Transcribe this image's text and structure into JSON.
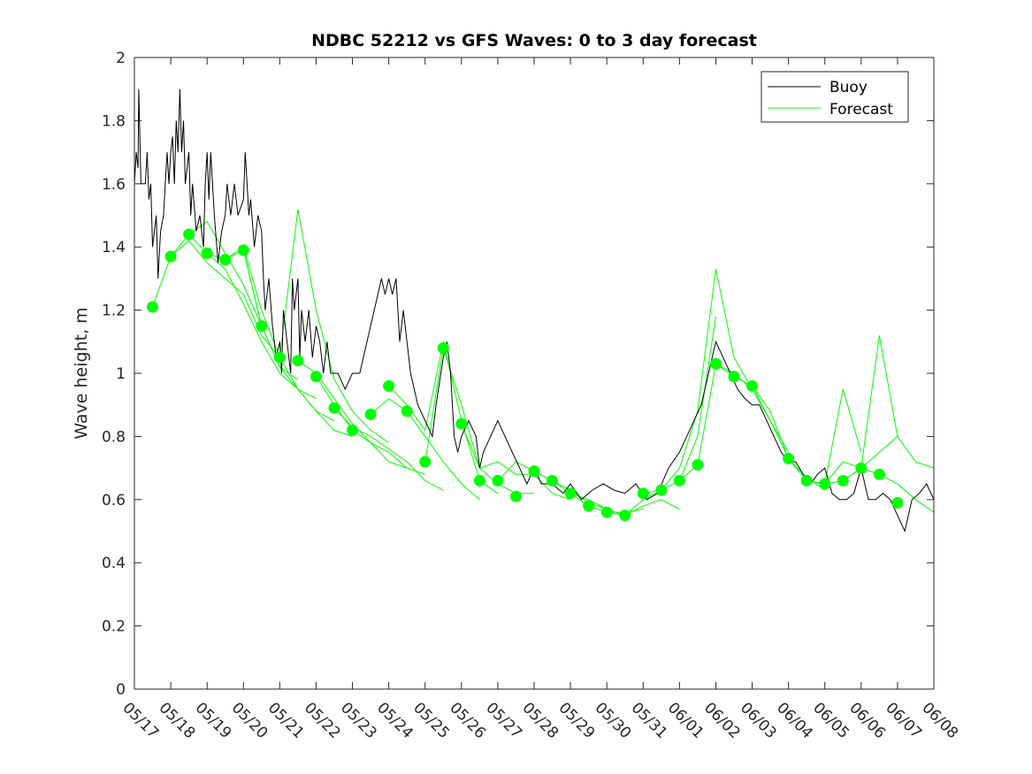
{
  "chart_data": {
    "type": "line",
    "title": "NDBC 52212 vs GFS Waves: 0 to 3 day forecast",
    "xlabel": "",
    "ylabel": "Wave height, m",
    "xlim": [
      "05/17",
      "06/08"
    ],
    "ylim": [
      0,
      2
    ],
    "yticks": [
      0,
      0.2,
      0.4,
      0.6,
      0.8,
      1,
      1.2,
      1.4,
      1.6,
      1.8,
      2
    ],
    "ytick_labels": [
      "0",
      "0.2",
      "0.4",
      "0.6",
      "0.8",
      "1",
      "1.2",
      "1.4",
      "1.6",
      "1.8",
      "2"
    ],
    "xtick_labels": [
      "05/17",
      "05/18",
      "05/19",
      "05/20",
      "05/21",
      "05/22",
      "05/23",
      "05/24",
      "05/25",
      "05/26",
      "05/27",
      "05/28",
      "05/29",
      "05/30",
      "05/31",
      "06/01",
      "06/02",
      "06/03",
      "06/04",
      "06/05",
      "06/06",
      "06/07",
      "06/08"
    ],
    "grid": false,
    "legend": {
      "position": "top-right",
      "entries": [
        "Buoy",
        "Forecast"
      ]
    },
    "colors": {
      "buoy": "#000000",
      "forecast": "#00ff00",
      "axis": "#262626"
    },
    "x_units": "days since 05/17 00:00",
    "buoy": [
      [
        0.0,
        1.6
      ],
      [
        0.05,
        1.7
      ],
      [
        0.1,
        1.65
      ],
      [
        0.12,
        1.9
      ],
      [
        0.18,
        1.6
      ],
      [
        0.3,
        1.6
      ],
      [
        0.35,
        1.7
      ],
      [
        0.4,
        1.55
      ],
      [
        0.45,
        1.6
      ],
      [
        0.5,
        1.4
      ],
      [
        0.6,
        1.5
      ],
      [
        0.65,
        1.3
      ],
      [
        0.72,
        1.45
      ],
      [
        0.8,
        1.5
      ],
      [
        0.85,
        1.6
      ],
      [
        0.9,
        1.7
      ],
      [
        0.95,
        1.6
      ],
      [
        1.0,
        1.7
      ],
      [
        1.05,
        1.75
      ],
      [
        1.1,
        1.6
      ],
      [
        1.15,
        1.8
      ],
      [
        1.2,
        1.7
      ],
      [
        1.25,
        1.9
      ],
      [
        1.3,
        1.7
      ],
      [
        1.35,
        1.8
      ],
      [
        1.4,
        1.6
      ],
      [
        1.5,
        1.7
      ],
      [
        1.55,
        1.5
      ],
      [
        1.6,
        1.6
      ],
      [
        1.7,
        1.45
      ],
      [
        1.8,
        1.5
      ],
      [
        1.9,
        1.4
      ],
      [
        1.95,
        1.6
      ],
      [
        2.0,
        1.7
      ],
      [
        2.05,
        1.55
      ],
      [
        2.1,
        1.7
      ],
      [
        2.15,
        1.6
      ],
      [
        2.2,
        1.5
      ],
      [
        2.3,
        1.35
      ],
      [
        2.4,
        1.45
      ],
      [
        2.5,
        1.5
      ],
      [
        2.55,
        1.6
      ],
      [
        2.65,
        1.5
      ],
      [
        2.75,
        1.6
      ],
      [
        2.85,
        1.5
      ],
      [
        3.0,
        1.55
      ],
      [
        3.05,
        1.7
      ],
      [
        3.1,
        1.6
      ],
      [
        3.15,
        1.5
      ],
      [
        3.2,
        1.55
      ],
      [
        3.3,
        1.4
      ],
      [
        3.4,
        1.5
      ],
      [
        3.5,
        1.45
      ],
      [
        3.55,
        1.3
      ],
      [
        3.6,
        1.2
      ],
      [
        3.7,
        1.3
      ],
      [
        3.8,
        1.15
      ],
      [
        3.9,
        1.05
      ],
      [
        4.0,
        1.1
      ],
      [
        4.05,
        1.0
      ],
      [
        4.1,
        1.2
      ],
      [
        4.2,
        1.1
      ],
      [
        4.3,
        1.0
      ],
      [
        4.35,
        1.3
      ],
      [
        4.4,
        1.2
      ],
      [
        4.5,
        1.3
      ],
      [
        4.55,
        1.05
      ],
      [
        4.6,
        1.2
      ],
      [
        4.7,
        1.1
      ],
      [
        4.8,
        1.2
      ],
      [
        4.9,
        1.05
      ],
      [
        5.0,
        1.15
      ],
      [
        5.1,
        1.1
      ],
      [
        5.2,
        1.0
      ],
      [
        5.3,
        1.1
      ],
      [
        5.4,
        1.0
      ],
      [
        5.5,
        1.0
      ],
      [
        5.6,
        1.0
      ],
      [
        5.8,
        0.95
      ],
      [
        6.0,
        1.0
      ],
      [
        6.2,
        1.0
      ],
      [
        6.4,
        1.1
      ],
      [
        6.6,
        1.2
      ],
      [
        6.8,
        1.3
      ],
      [
        6.9,
        1.25
      ],
      [
        7.0,
        1.3
      ],
      [
        7.1,
        1.25
      ],
      [
        7.2,
        1.3
      ],
      [
        7.3,
        1.1
      ],
      [
        7.4,
        1.2
      ],
      [
        7.5,
        1.1
      ],
      [
        7.6,
        1.0
      ],
      [
        7.8,
        0.9
      ],
      [
        8.0,
        0.85
      ],
      [
        8.2,
        0.8
      ],
      [
        8.3,
        0.9
      ],
      [
        8.5,
        1.05
      ],
      [
        8.6,
        1.1
      ],
      [
        8.7,
        1.0
      ],
      [
        8.8,
        0.8
      ],
      [
        8.9,
        0.75
      ],
      [
        9.0,
        0.8
      ],
      [
        9.2,
        0.85
      ],
      [
        9.4,
        0.8
      ],
      [
        9.5,
        0.7
      ],
      [
        9.6,
        0.75
      ],
      [
        9.8,
        0.8
      ],
      [
        10.0,
        0.85
      ],
      [
        10.2,
        0.8
      ],
      [
        10.4,
        0.75
      ],
      [
        10.6,
        0.7
      ],
      [
        10.8,
        0.65
      ],
      [
        11.0,
        0.7
      ],
      [
        11.2,
        0.65
      ],
      [
        11.5,
        0.65
      ],
      [
        11.8,
        0.62
      ],
      [
        12.0,
        0.65
      ],
      [
        12.3,
        0.6
      ],
      [
        12.6,
        0.63
      ],
      [
        12.9,
        0.65
      ],
      [
        13.2,
        0.63
      ],
      [
        13.5,
        0.62
      ],
      [
        13.8,
        0.65
      ],
      [
        14.1,
        0.6
      ],
      [
        14.4,
        0.62
      ],
      [
        14.7,
        0.7
      ],
      [
        15.0,
        0.75
      ],
      [
        15.2,
        0.8
      ],
      [
        15.4,
        0.85
      ],
      [
        15.6,
        0.9
      ],
      [
        15.8,
        1.0
      ],
      [
        16.0,
        1.1
      ],
      [
        16.2,
        1.05
      ],
      [
        16.4,
        1.0
      ],
      [
        16.6,
        0.95
      ],
      [
        16.8,
        0.92
      ],
      [
        17.0,
        0.9
      ],
      [
        17.2,
        0.9
      ],
      [
        17.4,
        0.85
      ],
      [
        17.6,
        0.8
      ],
      [
        17.8,
        0.75
      ],
      [
        18.0,
        0.72
      ],
      [
        18.2,
        0.72
      ],
      [
        18.4,
        0.68
      ],
      [
        18.6,
        0.65
      ],
      [
        18.8,
        0.68
      ],
      [
        19.0,
        0.7
      ],
      [
        19.2,
        0.62
      ],
      [
        19.4,
        0.6
      ],
      [
        19.6,
        0.6
      ],
      [
        19.8,
        0.62
      ],
      [
        20.0,
        0.7
      ],
      [
        20.2,
        0.6
      ],
      [
        20.4,
        0.6
      ],
      [
        20.6,
        0.62
      ],
      [
        20.8,
        0.6
      ],
      [
        21.0,
        0.55
      ],
      [
        21.2,
        0.5
      ],
      [
        21.3,
        0.55
      ],
      [
        21.4,
        0.6
      ],
      [
        21.6,
        0.62
      ],
      [
        21.8,
        0.65
      ],
      [
        22.0,
        0.6
      ]
    ],
    "forecast_markers": [
      [
        0.5,
        1.21
      ],
      [
        1.0,
        1.37
      ],
      [
        1.5,
        1.44
      ],
      [
        2.0,
        1.38
      ],
      [
        2.5,
        1.36
      ],
      [
        3.0,
        1.39
      ],
      [
        3.5,
        1.15
      ],
      [
        4.0,
        1.05
      ],
      [
        4.5,
        1.04
      ],
      [
        5.0,
        0.99
      ],
      [
        5.5,
        0.89
      ],
      [
        6.0,
        0.82
      ],
      [
        6.5,
        0.87
      ],
      [
        7.0,
        0.96
      ],
      [
        7.5,
        0.88
      ],
      [
        8.0,
        0.72
      ],
      [
        8.5,
        1.08
      ],
      [
        9.0,
        0.84
      ],
      [
        9.5,
        0.66
      ],
      [
        10.0,
        0.66
      ],
      [
        10.5,
        0.61
      ],
      [
        11.0,
        0.69
      ],
      [
        11.5,
        0.66
      ],
      [
        12.0,
        0.62
      ],
      [
        12.5,
        0.58
      ],
      [
        13.0,
        0.56
      ],
      [
        13.5,
        0.55
      ],
      [
        14.0,
        0.62
      ],
      [
        14.5,
        0.63
      ],
      [
        15.0,
        0.66
      ],
      [
        15.5,
        0.71
      ],
      [
        16.0,
        1.03
      ],
      [
        16.5,
        0.99
      ],
      [
        17.0,
        0.96
      ],
      [
        18.0,
        0.73
      ],
      [
        18.5,
        0.66
      ],
      [
        19.0,
        0.65
      ],
      [
        19.5,
        0.66
      ],
      [
        20.0,
        0.7
      ],
      [
        20.5,
        0.68
      ],
      [
        21.0,
        0.59
      ]
    ],
    "forecast_series": [
      [
        [
          0.5,
          1.21
        ],
        [
          1.0,
          1.37
        ],
        [
          1.5,
          1.44
        ],
        [
          2.0,
          1.38
        ],
        [
          2.5,
          1.36
        ],
        [
          3.0,
          1.39
        ],
        [
          3.5,
          1.15
        ]
      ],
      [
        [
          1.0,
          1.37
        ],
        [
          1.5,
          1.42
        ],
        [
          2.0,
          1.35
        ],
        [
          2.5,
          1.3
        ],
        [
          3.0,
          1.25
        ],
        [
          3.5,
          1.12
        ],
        [
          4.0,
          1.05
        ]
      ],
      [
        [
          1.5,
          1.44
        ],
        [
          2.0,
          1.48
        ],
        [
          2.5,
          1.38
        ],
        [
          3.0,
          1.28
        ],
        [
          3.5,
          1.15
        ],
        [
          4.0,
          1.02
        ],
        [
          4.5,
          0.98
        ]
      ],
      [
        [
          2.0,
          1.38
        ],
        [
          2.5,
          1.33
        ],
        [
          3.0,
          1.22
        ],
        [
          3.5,
          1.1
        ],
        [
          4.0,
          1.0
        ],
        [
          4.5,
          0.95
        ],
        [
          5.0,
          0.92
        ]
      ],
      [
        [
          2.5,
          1.36
        ],
        [
          3.0,
          1.4
        ],
        [
          3.5,
          1.2
        ],
        [
          4.0,
          1.05
        ],
        [
          4.5,
          0.95
        ],
        [
          5.0,
          0.88
        ],
        [
          5.5,
          0.85
        ]
      ],
      [
        [
          3.0,
          1.39
        ],
        [
          3.5,
          1.15
        ],
        [
          4.0,
          1.02
        ],
        [
          4.5,
          0.95
        ],
        [
          5.0,
          0.88
        ],
        [
          5.5,
          0.82
        ],
        [
          6.0,
          0.8
        ]
      ],
      [
        [
          4.0,
          1.05
        ],
        [
          4.5,
          1.52
        ],
        [
          5.0,
          1.2
        ],
        [
          5.5,
          0.98
        ],
        [
          6.0,
          0.88
        ],
        [
          6.5,
          0.82
        ],
        [
          7.0,
          0.78
        ]
      ],
      [
        [
          4.5,
          1.04
        ],
        [
          5.0,
          1.0
        ],
        [
          5.5,
          0.92
        ],
        [
          6.0,
          0.84
        ],
        [
          6.5,
          0.78
        ],
        [
          7.0,
          0.72
        ],
        [
          7.5,
          0.7
        ]
      ],
      [
        [
          5.0,
          0.99
        ],
        [
          5.5,
          0.9
        ],
        [
          6.0,
          0.82
        ],
        [
          6.5,
          0.78
        ],
        [
          7.0,
          0.75
        ],
        [
          7.5,
          0.7
        ],
        [
          8.0,
          0.68
        ]
      ],
      [
        [
          5.5,
          0.89
        ],
        [
          6.0,
          0.83
        ],
        [
          6.5,
          0.8
        ],
        [
          7.0,
          0.76
        ],
        [
          7.5,
          0.72
        ],
        [
          8.0,
          0.66
        ],
        [
          8.5,
          0.63
        ]
      ],
      [
        [
          6.5,
          0.87
        ],
        [
          7.0,
          0.92
        ],
        [
          7.5,
          0.88
        ],
        [
          8.0,
          0.8
        ],
        [
          8.5,
          0.72
        ],
        [
          9.0,
          0.65
        ],
        [
          9.5,
          0.6
        ]
      ],
      [
        [
          7.0,
          0.96
        ],
        [
          7.5,
          0.9
        ],
        [
          8.0,
          0.82
        ],
        [
          8.5,
          1.1
        ],
        [
          9.0,
          0.85
        ],
        [
          9.5,
          0.66
        ],
        [
          10.0,
          0.62
        ]
      ],
      [
        [
          8.0,
          0.72
        ],
        [
          8.5,
          1.08
        ],
        [
          9.0,
          0.9
        ],
        [
          9.5,
          0.7
        ],
        [
          10.0,
          0.65
        ],
        [
          10.5,
          0.62
        ],
        [
          11.0,
          0.62
        ]
      ],
      [
        [
          9.0,
          0.84
        ],
        [
          9.5,
          0.7
        ],
        [
          10.0,
          0.72
        ],
        [
          10.5,
          0.68
        ],
        [
          11.0,
          0.68
        ],
        [
          11.5,
          0.62
        ],
        [
          12.0,
          0.6
        ]
      ],
      [
        [
          10.0,
          0.66
        ],
        [
          10.5,
          0.72
        ],
        [
          11.0,
          0.69
        ],
        [
          11.5,
          0.66
        ],
        [
          12.0,
          0.63
        ],
        [
          12.5,
          0.59
        ],
        [
          13.0,
          0.57
        ]
      ],
      [
        [
          11.0,
          0.69
        ],
        [
          11.5,
          0.66
        ],
        [
          12.0,
          0.62
        ],
        [
          12.5,
          0.58
        ],
        [
          13.0,
          0.56
        ],
        [
          13.5,
          0.56
        ],
        [
          14.0,
          0.57
        ]
      ],
      [
        [
          12.0,
          0.62
        ],
        [
          12.5,
          0.6
        ],
        [
          13.0,
          0.57
        ],
        [
          13.5,
          0.55
        ],
        [
          14.0,
          0.58
        ],
        [
          14.5,
          0.6
        ],
        [
          15.0,
          0.57
        ]
      ],
      [
        [
          13.0,
          0.56
        ],
        [
          13.5,
          0.55
        ],
        [
          14.0,
          0.6
        ],
        [
          14.5,
          0.63
        ],
        [
          15.0,
          0.66
        ],
        [
          15.5,
          0.8
        ],
        [
          16.0,
          1.18
        ]
      ],
      [
        [
          14.0,
          0.62
        ],
        [
          14.5,
          0.63
        ],
        [
          15.0,
          0.7
        ],
        [
          15.5,
          0.88
        ],
        [
          16.0,
          1.33
        ],
        [
          16.5,
          1.05
        ],
        [
          17.0,
          0.95
        ]
      ],
      [
        [
          15.0,
          0.66
        ],
        [
          15.5,
          0.71
        ],
        [
          16.0,
          1.03
        ],
        [
          16.5,
          1.0
        ],
        [
          17.0,
          0.95
        ],
        [
          17.5,
          0.85
        ],
        [
          18.0,
          0.75
        ]
      ],
      [
        [
          16.0,
          1.03
        ],
        [
          16.5,
          0.99
        ],
        [
          17.0,
          0.96
        ],
        [
          17.5,
          0.85
        ],
        [
          18.0,
          0.73
        ],
        [
          18.5,
          0.67
        ],
        [
          19.0,
          0.63
        ]
      ],
      [
        [
          17.0,
          0.96
        ],
        [
          17.5,
          0.88
        ],
        [
          18.0,
          0.73
        ],
        [
          18.5,
          0.66
        ],
        [
          19.0,
          0.65
        ],
        [
          19.5,
          0.95
        ],
        [
          20.0,
          0.75
        ]
      ],
      [
        [
          18.0,
          0.73
        ],
        [
          18.5,
          0.66
        ],
        [
          19.0,
          0.65
        ],
        [
          19.5,
          0.72
        ],
        [
          20.0,
          0.7
        ],
        [
          20.5,
          1.12
        ],
        [
          21.0,
          0.8
        ]
      ],
      [
        [
          19.0,
          0.65
        ],
        [
          19.5,
          0.66
        ],
        [
          20.0,
          0.7
        ],
        [
          20.5,
          0.68
        ],
        [
          21.0,
          0.65
        ],
        [
          21.5,
          0.6
        ],
        [
          22.0,
          0.56
        ]
      ],
      [
        [
          19.5,
          0.66
        ],
        [
          20.0,
          0.7
        ],
        [
          20.5,
          0.75
        ],
        [
          21.0,
          0.8
        ],
        [
          21.5,
          0.72
        ],
        [
          22.0,
          0.7
        ]
      ]
    ]
  }
}
